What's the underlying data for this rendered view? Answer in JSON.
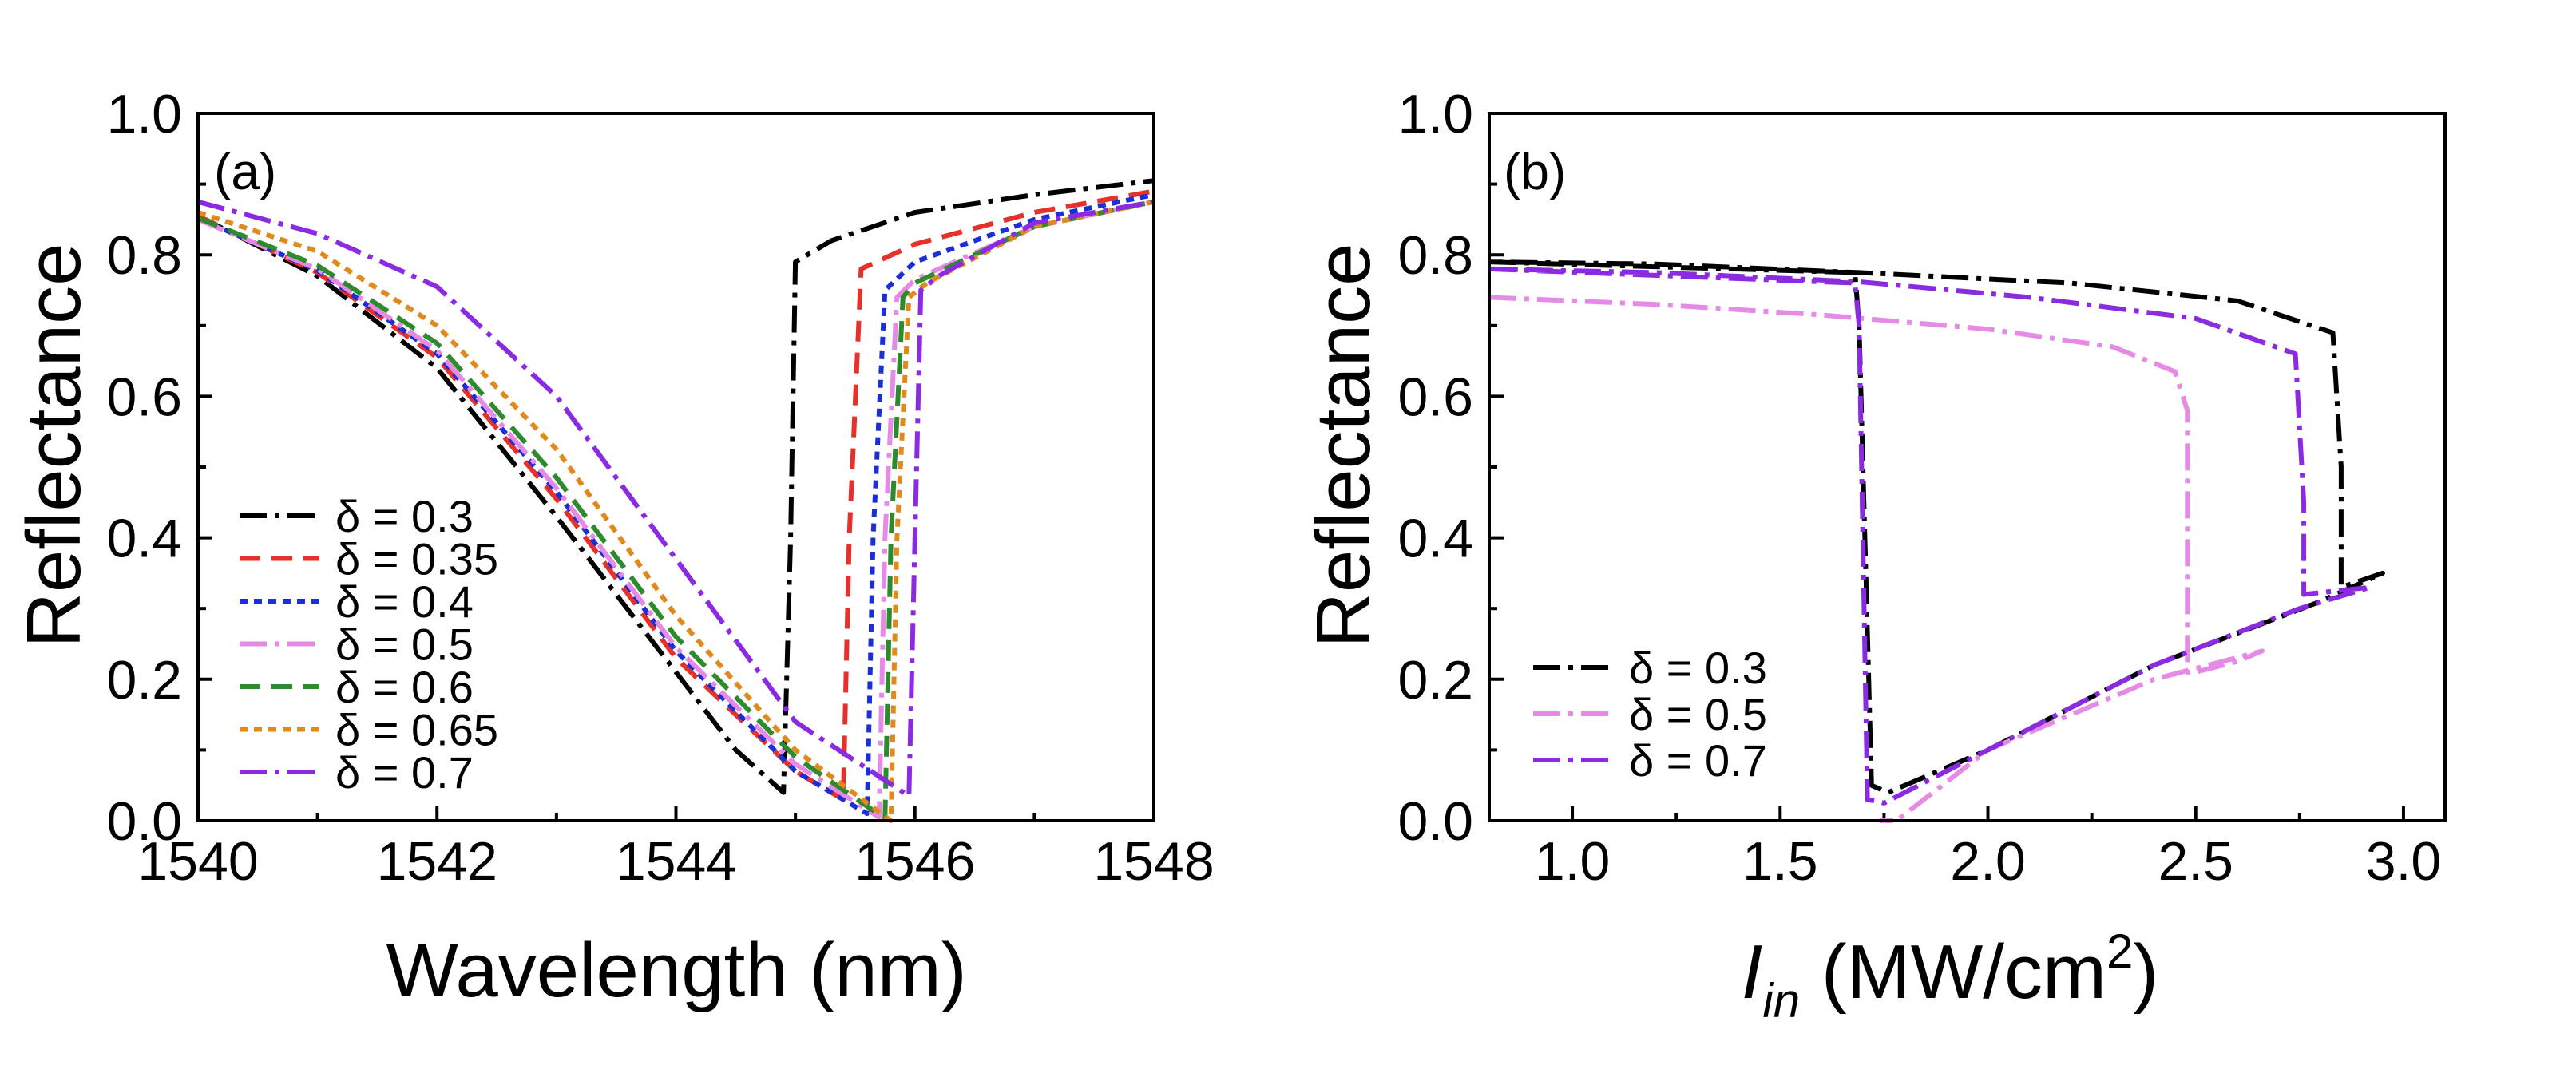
{
  "chart_data": [
    {
      "panel": "(a)",
      "type": "line",
      "xlabel": "Wavelength (nm)",
      "ylabel": "Reflectance",
      "xlim": [
        1540,
        1548
      ],
      "ylim": [
        0.0,
        1.0
      ],
      "xticks": [
        "1540",
        "1542",
        "1544",
        "1546",
        "1548"
      ],
      "yticks": [
        "0.0",
        "0.2",
        "0.4",
        "0.6",
        "0.8",
        "1.0"
      ],
      "legend_position": "lower-left",
      "series": [
        {
          "name": "δ = 0.3",
          "color": "#000000",
          "dash": "dashdot",
          "x": [
            1540,
            1541,
            1542,
            1543,
            1544,
            1544.5,
            1544.9,
            1544.96,
            1545.0,
            1545.3,
            1546,
            1547,
            1548
          ],
          "y": [
            0.855,
            0.77,
            0.64,
            0.43,
            0.21,
            0.1,
            0.04,
            0.4,
            0.79,
            0.82,
            0.86,
            0.885,
            0.905
          ]
        },
        {
          "name": "δ = 0.35",
          "color": "#e8302a",
          "dash": "dashed",
          "x": [
            1540,
            1541,
            1542,
            1543,
            1544,
            1545,
            1545.4,
            1545.45,
            1545.55,
            1546,
            1547,
            1548
          ],
          "y": [
            0.855,
            0.775,
            0.655,
            0.455,
            0.23,
            0.07,
            0.03,
            0.4,
            0.78,
            0.815,
            0.86,
            0.89
          ]
        },
        {
          "name": "δ = 0.4",
          "color": "#1a2fd8",
          "dash": "dotted",
          "x": [
            1540,
            1541,
            1542,
            1543,
            1544,
            1545,
            1545.6,
            1545.65,
            1545.75,
            1546,
            1547,
            1548
          ],
          "y": [
            0.852,
            0.778,
            0.66,
            0.465,
            0.24,
            0.07,
            0.01,
            0.4,
            0.75,
            0.79,
            0.85,
            0.885
          ]
        },
        {
          "name": "δ = 0.5",
          "color": "#e58be6",
          "dash": "dashdot",
          "x": [
            1540,
            1541,
            1542,
            1543,
            1544,
            1545,
            1545.7,
            1545.75,
            1545.85,
            1546,
            1547,
            1548
          ],
          "y": [
            0.85,
            0.78,
            0.665,
            0.47,
            0.245,
            0.08,
            0.005,
            0.4,
            0.74,
            0.765,
            0.84,
            0.875
          ]
        },
        {
          "name": "δ = 0.6",
          "color": "#2d8a2d",
          "dash": "dashed",
          "x": [
            1540,
            1541,
            1542,
            1543,
            1544,
            1545,
            1545.75,
            1545.8,
            1545.9,
            1546,
            1547,
            1548
          ],
          "y": [
            0.852,
            0.785,
            0.675,
            0.485,
            0.26,
            0.09,
            0.003,
            0.4,
            0.74,
            0.76,
            0.84,
            0.875
          ]
        },
        {
          "name": "δ = 0.65",
          "color": "#e08a1e",
          "dash": "dotted",
          "x": [
            1540,
            1541,
            1542,
            1543,
            1544,
            1545,
            1545.8,
            1545.85,
            1545.95,
            1546.1,
            1547,
            1548
          ],
          "y": [
            0.86,
            0.805,
            0.7,
            0.525,
            0.29,
            0.1,
            0.0,
            0.4,
            0.74,
            0.76,
            0.84,
            0.875
          ]
        },
        {
          "name": "δ = 0.7",
          "color": "#8a2be2",
          "dash": "dashdot",
          "x": [
            1540,
            1541,
            1542,
            1543,
            1544,
            1545,
            1545.95,
            1546.0,
            1546.05,
            1546.2,
            1547,
            1548
          ],
          "y": [
            0.875,
            0.83,
            0.755,
            0.6,
            0.37,
            0.14,
            0.035,
            0.4,
            0.75,
            0.77,
            0.845,
            0.875
          ]
        }
      ]
    },
    {
      "panel": "(b)",
      "type": "line",
      "xlabel_main": "I",
      "xlabel_sub": "in",
      "xlabel_rest": " (MW/cm",
      "xlabel_sup": "2",
      "xlabel_end": ")",
      "ylabel": "Reflectance",
      "xlim": [
        0.8,
        3.1
      ],
      "ylim": [
        0.0,
        1.0
      ],
      "xticks": [
        "1.0",
        "1.5",
        "2.0",
        "2.5",
        "3.0"
      ],
      "yticks": [
        "0.0",
        "0.2",
        "0.4",
        "0.6",
        "0.8",
        "1.0"
      ],
      "legend_position": "lower-left",
      "series": [
        {
          "name": "δ = 0.3",
          "color": "#000000",
          "dash": "dashdot",
          "x": [
            0.8,
            1.68,
            1.69,
            1.72,
            1.76,
            2.0,
            2.4,
            2.8,
            2.95,
            2.85,
            2.85,
            2.83,
            2.6,
            2.2,
            1.69,
            1.2,
            0.8
          ],
          "y": [
            0.79,
            0.775,
            0.7,
            0.05,
            0.04,
            0.1,
            0.22,
            0.31,
            0.35,
            0.33,
            0.5,
            0.69,
            0.735,
            0.76,
            0.775,
            0.787,
            0.79
          ]
        },
        {
          "name": "δ = 0.5",
          "color": "#e58be6",
          "dash": "dashdot",
          "x": [
            0.8,
            1.2,
            1.6,
            2.0,
            2.3,
            2.45,
            2.48,
            2.48,
            2.5,
            2.6,
            2.66,
            2.4,
            2.0,
            1.78,
            1.74
          ],
          "y": [
            0.74,
            0.73,
            0.715,
            0.695,
            0.67,
            0.635,
            0.58,
            0.21,
            0.21,
            0.225,
            0.24,
            0.2,
            0.1,
            0.0,
            0.0
          ]
        },
        {
          "name": "δ = 0.7",
          "color": "#8a2be2",
          "dash": "dashdot",
          "x": [
            0.8,
            1.68,
            1.69,
            1.71,
            1.75,
            2.0,
            2.4,
            2.75,
            2.92,
            2.76,
            2.76,
            2.74,
            2.5,
            2.1,
            1.69,
            1.2,
            0.8
          ],
          "y": [
            0.78,
            0.76,
            0.7,
            0.03,
            0.025,
            0.1,
            0.22,
            0.3,
            0.33,
            0.32,
            0.45,
            0.66,
            0.71,
            0.74,
            0.762,
            0.775,
            0.78
          ]
        }
      ]
    }
  ]
}
